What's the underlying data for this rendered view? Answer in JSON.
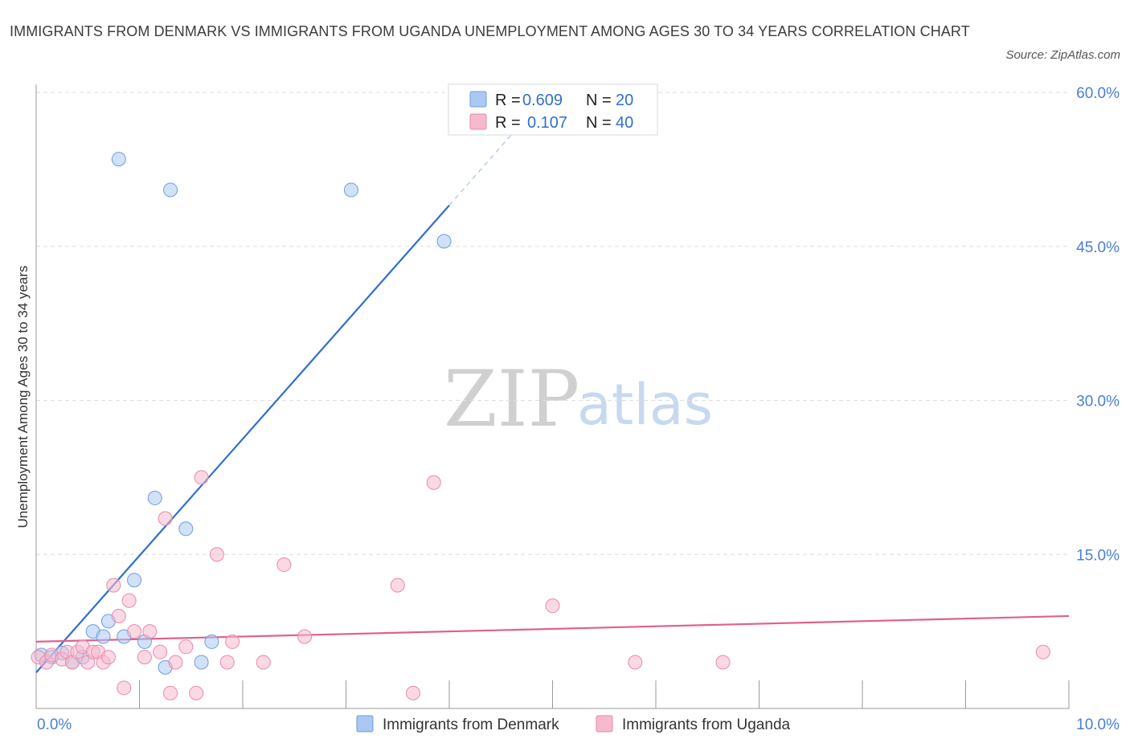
{
  "title": "IMMIGRANTS FROM DENMARK VS IMMIGRANTS FROM UGANDA UNEMPLOYMENT AMONG AGES 30 TO 34 YEARS CORRELATION CHART",
  "source": "Source: ZipAtlas.com",
  "watermark": {
    "zip": "ZIP",
    "atlas": "atlas"
  },
  "legend": {
    "r_label": "R =",
    "n_label": "N =",
    "rows": [
      {
        "r": "0.609",
        "n": "20",
        "color": "#aac8f2"
      },
      {
        "r": "0.107",
        "n": "40",
        "color": "#f7b9cd"
      }
    ]
  },
  "chart_data": {
    "type": "scatter",
    "title": "IMMIGRANTS FROM DENMARK VS IMMIGRANTS FROM UGANDA UNEMPLOYMENT AMONG AGES 30 TO 34 YEARS CORRELATION CHART",
    "xlabel": "",
    "ylabel": "Unemployment Among Ages 30 to 34 years",
    "xlim": [
      0,
      10
    ],
    "ylim": [
      0,
      60
    ],
    "x_tick_labels": [
      "0.0%",
      "10.0%"
    ],
    "y_tick_labels": [
      "15.0%",
      "30.0%",
      "45.0%",
      "60.0%"
    ],
    "y_ticks": [
      15,
      30,
      45,
      60
    ],
    "grid": true,
    "series": [
      {
        "name": "Immigrants from Denmark",
        "color": "#aac8f2",
        "stroke": "#6f9ddc",
        "points": [
          [
            0.05,
            5.2
          ],
          [
            0.15,
            5.0
          ],
          [
            0.25,
            5.4
          ],
          [
            0.35,
            4.5
          ],
          [
            0.45,
            5.0
          ],
          [
            0.55,
            7.5
          ],
          [
            0.65,
            7.0
          ],
          [
            0.7,
            8.5
          ],
          [
            0.8,
            53.5
          ],
          [
            0.85,
            7.0
          ],
          [
            0.95,
            12.5
          ],
          [
            1.05,
            6.5
          ],
          [
            1.15,
            20.5
          ],
          [
            1.25,
            4.0
          ],
          [
            1.3,
            50.5
          ],
          [
            1.45,
            17.5
          ],
          [
            1.6,
            4.5
          ],
          [
            1.7,
            6.5
          ],
          [
            3.05,
            50.5
          ],
          [
            3.95,
            45.5
          ]
        ]
      },
      {
        "name": "Immigrants from Uganda",
        "color": "#f7b9cd",
        "stroke": "#e68aaa",
        "points": [
          [
            0.02,
            5.0
          ],
          [
            0.1,
            4.5
          ],
          [
            0.15,
            5.2
          ],
          [
            0.25,
            4.8
          ],
          [
            0.3,
            5.5
          ],
          [
            0.35,
            4.5
          ],
          [
            0.4,
            5.5
          ],
          [
            0.45,
            6.0
          ],
          [
            0.5,
            4.5
          ],
          [
            0.55,
            5.5
          ],
          [
            0.6,
            5.5
          ],
          [
            0.65,
            4.5
          ],
          [
            0.7,
            5.0
          ],
          [
            0.75,
            12.0
          ],
          [
            0.8,
            9.0
          ],
          [
            0.85,
            2.0
          ],
          [
            0.9,
            10.5
          ],
          [
            0.95,
            7.5
          ],
          [
            1.05,
            5.0
          ],
          [
            1.1,
            7.5
          ],
          [
            1.2,
            5.5
          ],
          [
            1.25,
            18.5
          ],
          [
            1.3,
            1.5
          ],
          [
            1.35,
            4.5
          ],
          [
            1.45,
            6.0
          ],
          [
            1.55,
            1.5
          ],
          [
            1.6,
            22.5
          ],
          [
            1.75,
            15.0
          ],
          [
            1.85,
            4.5
          ],
          [
            1.9,
            6.5
          ],
          [
            2.2,
            4.5
          ],
          [
            2.4,
            14.0
          ],
          [
            2.6,
            7.0
          ],
          [
            3.5,
            12.0
          ],
          [
            3.65,
            1.5
          ],
          [
            3.85,
            22.0
          ],
          [
            5.0,
            10.0
          ],
          [
            5.8,
            4.5
          ],
          [
            6.65,
            4.5
          ],
          [
            9.75,
            5.5
          ]
        ]
      }
    ],
    "trendlines": [
      {
        "series": "Immigrants from Denmark",
        "color": "#2f6fd0",
        "x": [
          0.0,
          4.0
        ],
        "y": [
          3.5,
          49.0
        ],
        "dashed_extension": {
          "x": [
            4.0,
            4.7
          ],
          "y": [
            49.0,
            57.0
          ]
        }
      },
      {
        "series": "Immigrants from Uganda",
        "color": "#e0608e",
        "x": [
          0.0,
          10.0
        ],
        "y": [
          6.5,
          9.0
        ]
      }
    ]
  }
}
